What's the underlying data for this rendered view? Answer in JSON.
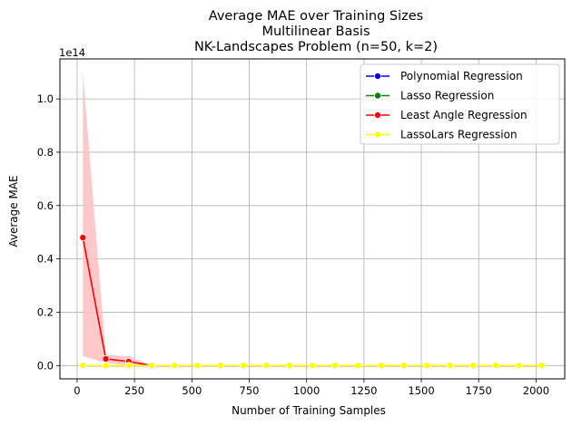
{
  "chart_data": {
    "type": "line",
    "title_lines": [
      "Average MAE over Training Sizes",
      "Multilinear Basis",
      "NK-Landscapes Problem (n=50, k=2)"
    ],
    "xlabel": "Number of Training Samples",
    "ylabel": "Average MAE",
    "y_offset_label": "1e14",
    "xlim": [
      -75,
      2125
    ],
    "ylim": [
      -0.05,
      1.15
    ],
    "x_ticks": [
      0,
      250,
      500,
      750,
      1000,
      1250,
      1500,
      1750,
      2000
    ],
    "x_tick_labels": [
      "0",
      "250",
      "500",
      "750",
      "1000",
      "1250",
      "1500",
      "1750",
      "2000"
    ],
    "y_ticks": [
      0.0,
      0.2,
      0.4,
      0.6,
      0.8,
      1.0
    ],
    "y_tick_labels": [
      "0.0",
      "0.2",
      "0.4",
      "0.6",
      "0.8",
      "1.0"
    ],
    "grid": true,
    "legend_position": "top-right",
    "x": [
      25,
      125,
      225,
      325,
      425,
      525,
      625,
      725,
      825,
      925,
      1025,
      1125,
      1225,
      1325,
      1425,
      1525,
      1625,
      1725,
      1825,
      1925,
      2025
    ],
    "series": [
      {
        "name": "Polynomial Regression",
        "color": "#0000ff",
        "values": [
          0.0,
          0.0,
          0.0,
          0.0,
          0.0,
          0.0,
          0.0,
          0.0,
          0.0,
          0.0,
          0.0,
          0.0,
          0.0,
          0.0,
          0.0,
          0.0,
          0.0,
          0.0,
          0.0,
          0.0,
          0.0
        ]
      },
      {
        "name": "Lasso Regression",
        "color": "#008000",
        "values": [
          0.0,
          0.0,
          0.0,
          0.0,
          0.0,
          0.0,
          0.0,
          0.0,
          0.0,
          0.0,
          0.0,
          0.0,
          0.0,
          0.0,
          0.0,
          0.0,
          0.0,
          0.0,
          0.0,
          0.0,
          0.0
        ]
      },
      {
        "name": "Least Angle Regression",
        "color": "#ff0000",
        "values": [
          0.48,
          0.025,
          0.015,
          0.0,
          0.0,
          0.0,
          0.0,
          0.0,
          0.0,
          0.0,
          0.0,
          0.0,
          0.0,
          0.0,
          0.0,
          0.0,
          0.0,
          0.0,
          0.0,
          0.0,
          0.0
        ],
        "band_upper": [
          1.1,
          0.04,
          0.035,
          0.0,
          0.0,
          0.0,
          0.0,
          0.0,
          0.0,
          0.0,
          0.0,
          0.0,
          0.0,
          0.0,
          0.0,
          0.0,
          0.0,
          0.0,
          0.0,
          0.0,
          0.0
        ],
        "band_lower": [
          0.035,
          0.01,
          0.0,
          0.0,
          0.0,
          0.0,
          0.0,
          0.0,
          0.0,
          0.0,
          0.0,
          0.0,
          0.0,
          0.0,
          0.0,
          0.0,
          0.0,
          0.0,
          0.0,
          0.0,
          0.0
        ],
        "band_color": "#ffc0c0"
      },
      {
        "name": "LassoLars Regression",
        "color": "#ffff00",
        "values": [
          0.0,
          0.0,
          0.0,
          0.0,
          0.0,
          0.0,
          0.0,
          0.0,
          0.0,
          0.0,
          0.0,
          0.0,
          0.0,
          0.0,
          0.0,
          0.0,
          0.0,
          0.0,
          0.0,
          0.0,
          0.0
        ]
      }
    ]
  }
}
